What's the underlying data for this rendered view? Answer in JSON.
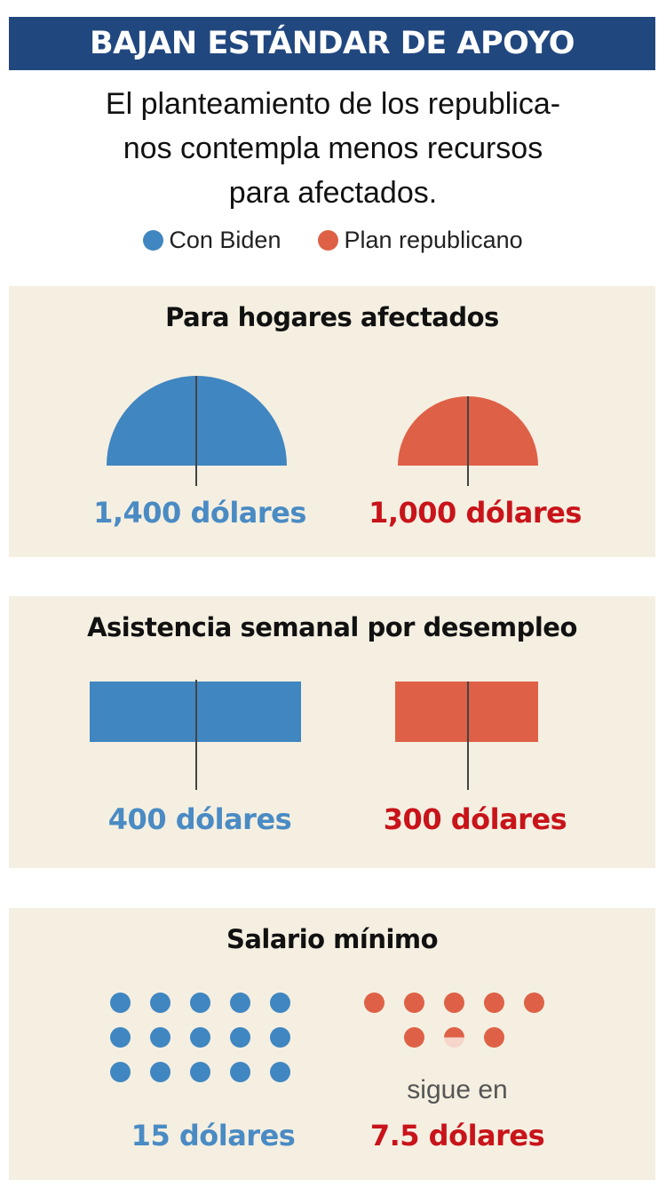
{
  "header": {
    "title": "BAJAN ESTÁNDAR DE APOYO"
  },
  "subtitle": {
    "line1": "El planteamiento de los republica-",
    "line2": "nos contempla menos recursos",
    "line3": "para afectados."
  },
  "legend": [
    {
      "label": "Con Biden",
      "color": "#4086c1"
    },
    {
      "label": "Plan republicano",
      "color": "#de6147"
    }
  ],
  "colors": {
    "biden": "#4086c1",
    "republican": "#de6147",
    "biden_text": "#4a8bc4",
    "republican_text": "#c8141a",
    "panel_bg": "#f5efe1",
    "header_bg": "#21477f"
  },
  "panels": [
    {
      "title": "Para hogares afectados",
      "biden_label": "1,400 dólares",
      "republican_label": "1,000 dólares",
      "shape": "semicircle"
    },
    {
      "title": "Asistencia semanal por desempleo",
      "biden_label": "400 dólares",
      "republican_label": "300 dólares",
      "shape": "rectangle"
    },
    {
      "title": "Salario mínimo",
      "biden_label": "15 dólares",
      "republican_note": "sigue en",
      "republican_label": "7.5 dólares",
      "shape": "dots"
    }
  ],
  "chart_data": [
    {
      "type": "bar",
      "title": "Para hogares afectados",
      "categories": [
        "Con Biden",
        "Plan republicano"
      ],
      "values": [
        1400,
        1000
      ],
      "unit": "dólares",
      "glyph": "semicircle area"
    },
    {
      "type": "bar",
      "title": "Asistencia semanal por desempleo",
      "categories": [
        "Con Biden",
        "Plan republicano"
      ],
      "values": [
        400,
        300
      ],
      "unit": "dólares",
      "glyph": "rectangle area"
    },
    {
      "type": "bar",
      "title": "Salario mínimo",
      "categories": [
        "Con Biden",
        "Plan republicano"
      ],
      "values": [
        15,
        7.5
      ],
      "unit": "dólares",
      "glyph": "dots (1 dot = 1 dólar)",
      "annotation": "sigue en"
    }
  ]
}
